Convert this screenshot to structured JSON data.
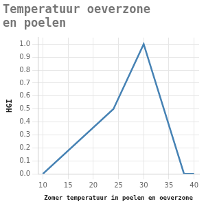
{
  "chart_data": {
    "type": "line",
    "title": [
      "Temperatuur oeverzone",
      "en poelen"
    ],
    "x_label": "Zomer temperatuur in poelen en oeverzone",
    "y_label": "HGI",
    "x": [
      10,
      24,
      30,
      38,
      40
    ],
    "values": [
      0,
      0.5,
      1.0,
      0,
      0
    ],
    "color": "#4682b4",
    "xlim": [
      9,
      41
    ],
    "xticks": [
      10,
      15,
      20,
      25,
      30,
      35,
      40
    ],
    "ylim": [
      0,
      1.05
    ],
    "yticks": [
      {
        "value": 0,
        "label": "0.0"
      },
      {
        "value": 0.1,
        "label": "0.1"
      },
      {
        "value": 0.2,
        "label": "0.2"
      },
      {
        "value": 0.3,
        "label": "0.3"
      },
      {
        "value": 0.4,
        "label": "0.4"
      },
      {
        "value": 0.5,
        "label": "0.5"
      },
      {
        "value": 0.6,
        "label": "0.6"
      },
      {
        "value": 0.7,
        "label": "0.7"
      },
      {
        "value": 0.8,
        "label": "0.8"
      },
      {
        "value": 0.9,
        "label": "0.9"
      },
      {
        "value": 1,
        "label": "1.0"
      }
    ],
    "grid": true
  }
}
